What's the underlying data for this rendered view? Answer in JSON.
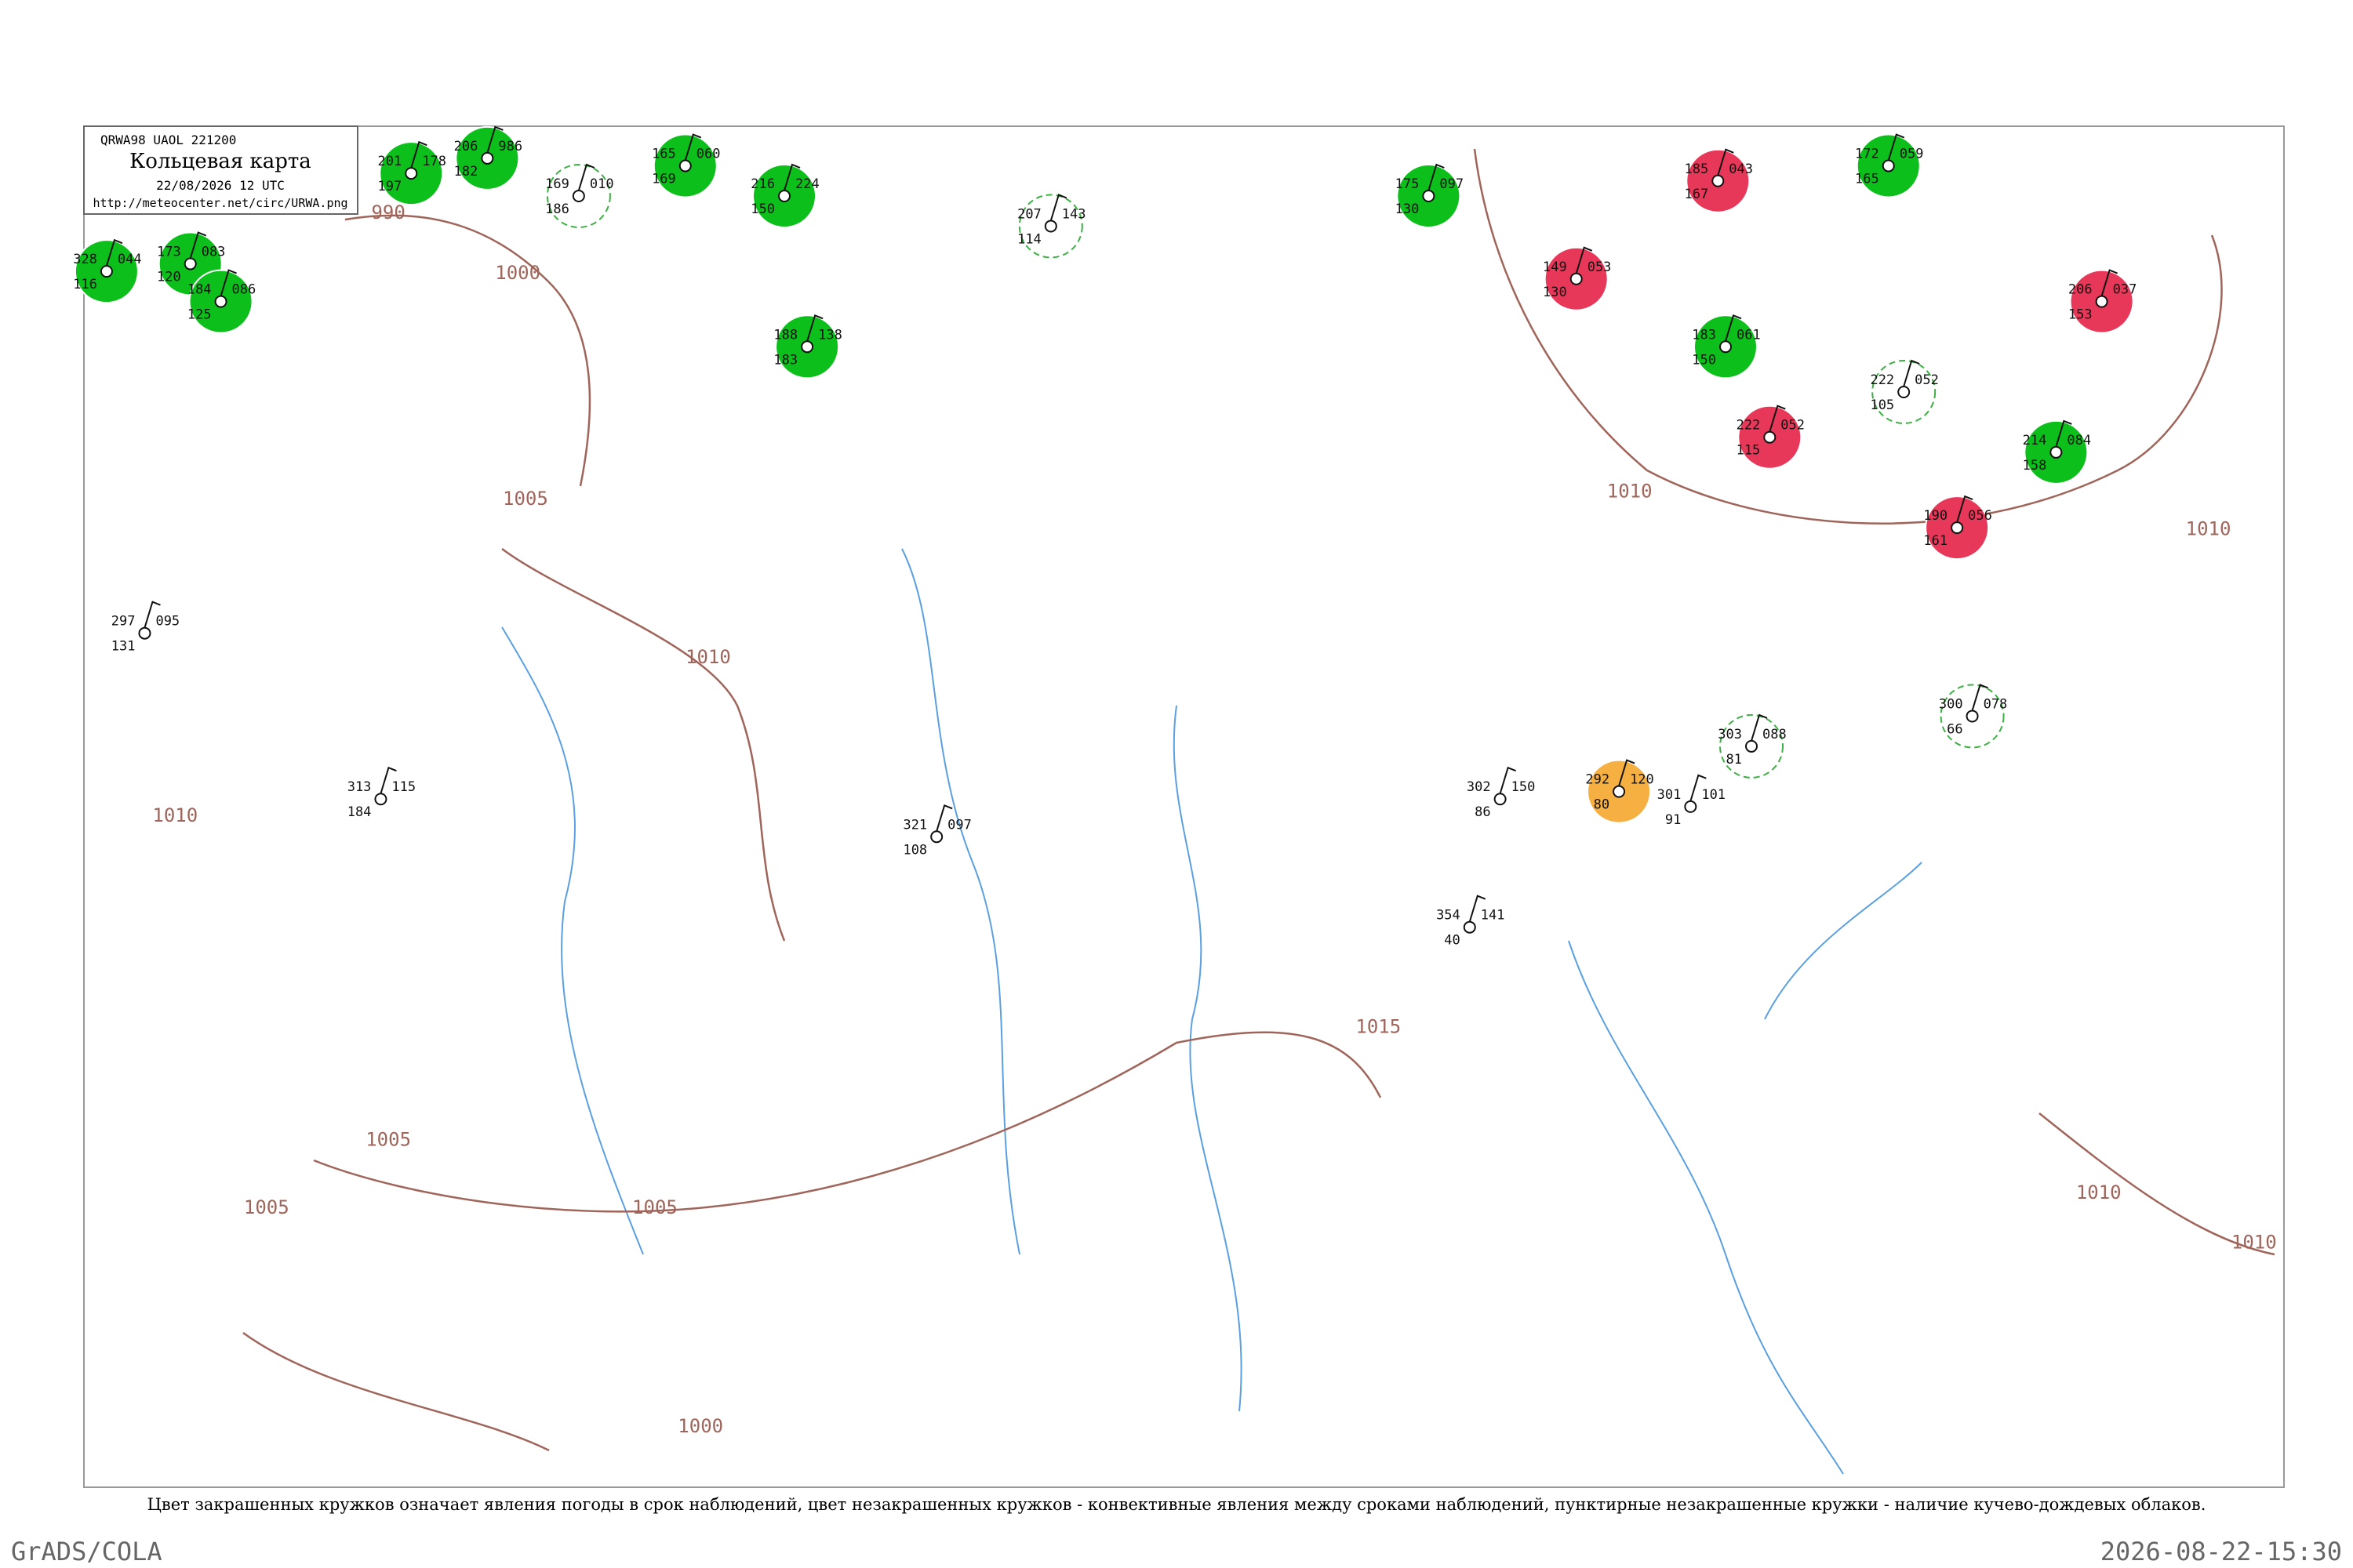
{
  "header": {
    "code": "QRWA98  UAOL  221200",
    "title": "Кольцевая карта",
    "date": "22/08/2026 12 UTC",
    "url": "http://meteocenter.net/circ/URWA.png"
  },
  "isobar_labels": [
    "990",
    "1000",
    "1005",
    "1010",
    "1010",
    "1010",
    "1010",
    "1015",
    "1005",
    "1005",
    "1005",
    "1010",
    "1010",
    "1000"
  ],
  "stations": [
    {
      "circle": "green",
      "t": "328",
      "p": "044",
      "d": "116"
    },
    {
      "circle": "green",
      "t": "173",
      "p": "083",
      "d": "120"
    },
    {
      "circle": "green",
      "t": "184",
      "p": "086",
      "d": "125"
    },
    {
      "circle": "green",
      "t": "201",
      "p": "178",
      "d": "197"
    },
    {
      "circle": "green",
      "t": "206",
      "p": "986",
      "d": "182"
    },
    {
      "circle": "green",
      "t": "165",
      "p": "060",
      "d": "169"
    },
    {
      "circle": "green",
      "t": "216",
      "p": "224",
      "d": "150"
    },
    {
      "circle": "green",
      "t": "188",
      "p": "138",
      "d": "183"
    },
    {
      "circle": "green",
      "t": "175",
      "p": "097",
      "d": "130"
    },
    {
      "circle": "green",
      "t": "183",
      "p": "061",
      "d": "150"
    },
    {
      "circle": "green",
      "t": "172",
      "p": "059",
      "d": "165"
    },
    {
      "circle": "green",
      "t": "214",
      "p": "084",
      "d": "158"
    },
    {
      "circle": "red",
      "t": "185",
      "p": "043",
      "d": "167"
    },
    {
      "circle": "red",
      "t": "149",
      "p": "053",
      "d": "130"
    },
    {
      "circle": "red",
      "t": "222",
      "p": "052",
      "d": "115"
    },
    {
      "circle": "red",
      "t": "206",
      "p": "037",
      "d": "153"
    },
    {
      "circle": "red",
      "t": "190",
      "p": "056",
      "d": "161"
    },
    {
      "circle": "orange",
      "t": "292",
      "p": "120",
      "d": "80"
    },
    {
      "circle": "plain",
      "t": "301",
      "p": "101",
      "d": "91"
    },
    {
      "circle": "plain",
      "t": "302",
      "p": "150",
      "d": "86"
    },
    {
      "circle": "plain",
      "t": "321",
      "p": "097",
      "d": "108"
    },
    {
      "circle": "plain",
      "t": "354",
      "p": "141",
      "d": "40"
    },
    {
      "circle": "plain",
      "t": "297",
      "p": "095",
      "d": "131"
    },
    {
      "circle": "plain",
      "t": "313",
      "p": "115",
      "d": "184"
    },
    {
      "circle": "dashed",
      "t": "169",
      "p": "010",
      "d": "186"
    },
    {
      "circle": "dashed",
      "t": "207",
      "p": "143",
      "d": "114"
    },
    {
      "circle": "dashed",
      "t": "222",
      "p": "052",
      "d": "105"
    },
    {
      "circle": "dashed",
      "t": "303",
      "p": "088",
      "d": "81"
    },
    {
      "circle": "dashed",
      "t": "300",
      "p": "078",
      "d": "66"
    }
  ],
  "caption": "Цвет закрашенных кружков означает явления погоды в срок наблюдений, цвет незакрашенных кружков - конвективные явления между сроками наблюдений, пунктирные незакрашенные кружки - наличие кучево-дождевых облаков.",
  "footer": {
    "left": "GrADS/COLA",
    "right": "2026-08-22-15:30"
  }
}
